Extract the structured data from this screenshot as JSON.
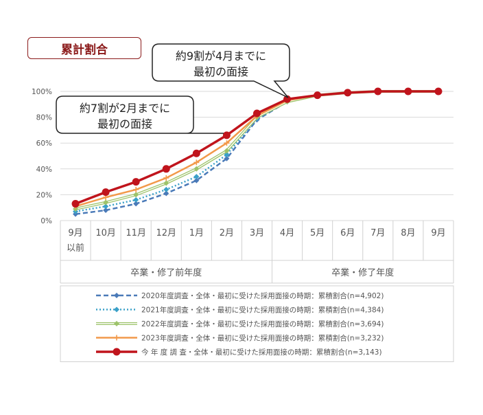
{
  "title": "累計割合",
  "callouts": [
    {
      "id": "c1",
      "line1": "約9割が4月までに",
      "line2": "最初の面接"
    },
    {
      "id": "c2",
      "line1": "約7割が2月までに",
      "line2": "最初の面接"
    }
  ],
  "groups": [
    "卒業・修了前年度",
    "卒業・修了年度"
  ],
  "chart_data": {
    "type": "line",
    "categories": [
      "9月以前",
      "10月",
      "11月",
      "12月",
      "1月",
      "2月",
      "3月",
      "4月",
      "5月",
      "6月",
      "7月",
      "8月",
      "9月"
    ],
    "category_labels": [
      [
        "9月",
        "以前"
      ],
      [
        "10月"
      ],
      [
        "11月"
      ],
      [
        "12月"
      ],
      [
        "1月"
      ],
      [
        "2月"
      ],
      [
        "3月"
      ],
      [
        "4月"
      ],
      [
        "5月"
      ],
      [
        "6月"
      ],
      [
        "7月"
      ],
      [
        "8月"
      ],
      [
        "9月"
      ]
    ],
    "ylim": [
      0,
      100
    ],
    "yticks": [
      0,
      20,
      40,
      60,
      80,
      100
    ],
    "ytick_labels": [
      "0%",
      "20%",
      "40%",
      "60%",
      "80%",
      "100%"
    ],
    "grid": true,
    "legend_position": "bottom",
    "series": [
      {
        "name": "2020年度調査・全体・最初に受けた採用面接の時期：累積割合(n=4,902)",
        "color": "#4a7ab8",
        "style": "dashed",
        "marker": "diamond",
        "values": [
          5,
          8,
          13,
          21,
          31,
          48,
          78,
          92,
          97,
          99,
          100,
          100,
          100
        ]
      },
      {
        "name": "2021年度調査・全体・最初に受けた採用面接の時期：累積割合(n=4,384)",
        "color": "#3aa0c8",
        "style": "dotted",
        "marker": "diamond",
        "values": [
          7,
          11,
          16,
          24,
          34,
          51,
          79,
          92,
          97,
          99,
          100,
          100,
          100
        ]
      },
      {
        "name": "2022年度調査・全体・最初に受けた採用面接の時期：累積割合(n=3,694)",
        "color": "#9dc36a",
        "style": "double",
        "marker": "diamond",
        "values": [
          9,
          14,
          20,
          29,
          40,
          54,
          80,
          92,
          97,
          99,
          100,
          100,
          100
        ]
      },
      {
        "name": "2023年度調査・全体・最初に受けた採用面接の時期：累積割合(n=3,232)",
        "color": "#f2994a",
        "style": "solid",
        "marker": "plus",
        "values": [
          11,
          18,
          24,
          33,
          45,
          60,
          81,
          93,
          97,
          99,
          100,
          100,
          100
        ]
      },
      {
        "name": "今 年 度 調 査・全体・最初に受けた採用面接の時期：累積割合(n=3,143)",
        "color": "#c0141c",
        "style": "solid-thick",
        "marker": "circle",
        "values": [
          13,
          22,
          30,
          40,
          52,
          66,
          83,
          94,
          97,
          99,
          100,
          100,
          100
        ]
      }
    ]
  }
}
